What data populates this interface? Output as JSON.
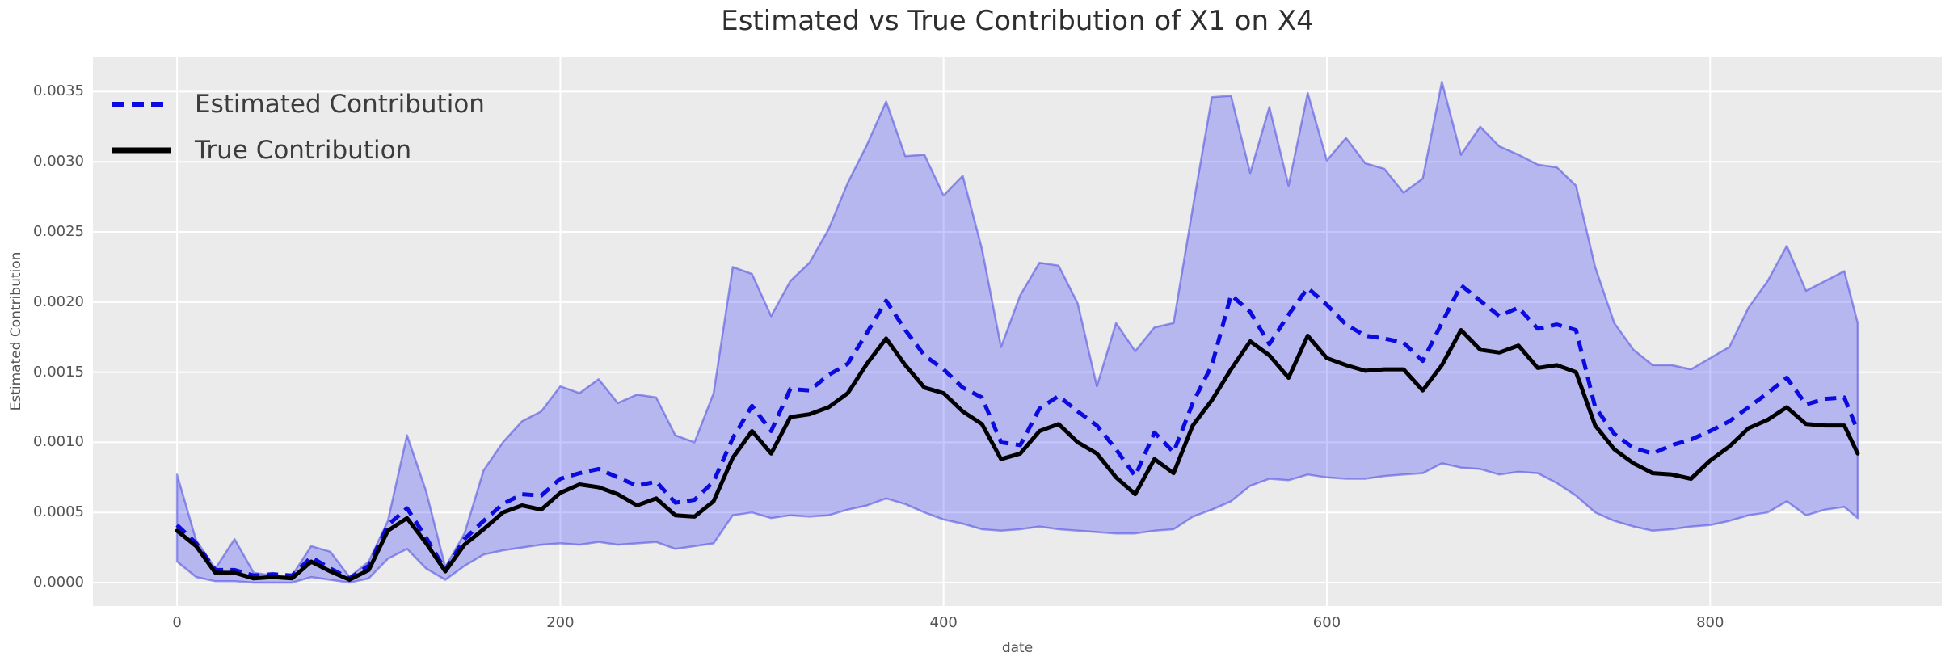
{
  "figure": {
    "title": "Estimated vs True Contribution of X1 on X4"
  },
  "axes": {
    "xlabel": "date",
    "ylabel": "Estimated Contribution",
    "background": "#ebebeb",
    "grid_color": "#ffffff",
    "x_ticks": [
      {
        "label": "0",
        "value": 0
      },
      {
        "label": "200",
        "value": 200
      },
      {
        "label": "400",
        "value": 400
      },
      {
        "label": "600",
        "value": 600
      },
      {
        "label": "800",
        "value": 800
      }
    ],
    "y_ticks": [
      {
        "label": "0.0000",
        "value": 0.0
      },
      {
        "label": "0.0005",
        "value": 0.0005
      },
      {
        "label": "0.0010",
        "value": 0.001
      },
      {
        "label": "0.0015",
        "value": 0.0015
      },
      {
        "label": "0.0020",
        "value": 0.002
      },
      {
        "label": "0.0025",
        "value": 0.0025
      },
      {
        "label": "0.0030",
        "value": 0.003
      },
      {
        "label": "0.0035",
        "value": 0.0035
      }
    ]
  },
  "legend": {
    "items": [
      {
        "label": "Estimated Contribution",
        "style": "dashed",
        "color": "#0b0be0"
      },
      {
        "label": "True Contribution",
        "style": "solid",
        "color": "#000000"
      }
    ]
  },
  "colors": {
    "estimated_line": "#0b0be0",
    "true_line": "#000000",
    "band_fill": "rgba(0,0,255,0.22)",
    "band_edge": "rgba(60,60,225,0.5)",
    "title_text": "#2e2e2e",
    "tick_text": "#545454"
  },
  "chart_data": {
    "type": "line",
    "title": "Estimated vs True Contribution of X1 on X4",
    "xlabel": "date",
    "ylabel": "Estimated Contribution",
    "xlim": [
      -43.9,
      920.9
    ],
    "ylim": [
      -0.000167,
      0.00375
    ],
    "grid": true,
    "legend_position": "upper left",
    "x": [
      0,
      10,
      20,
      30,
      40,
      50,
      60,
      70,
      80,
      90,
      100,
      110,
      120,
      130,
      140,
      150,
      160,
      170,
      180,
      190,
      200,
      210,
      220,
      230,
      240,
      250,
      260,
      270,
      280,
      290,
      300,
      310,
      320,
      330,
      340,
      350,
      360,
      370,
      380,
      390,
      400,
      410,
      420,
      430,
      440,
      450,
      460,
      470,
      480,
      490,
      500,
      510,
      520,
      530,
      540,
      550,
      560,
      570,
      580,
      590,
      600,
      610,
      620,
      630,
      640,
      650,
      660,
      670,
      680,
      690,
      700,
      710,
      720,
      730,
      740,
      750,
      760,
      770,
      780,
      790,
      800,
      810,
      820,
      830,
      840,
      850,
      860,
      870,
      877
    ],
    "series": [
      {
        "name": "Estimated Contribution",
        "style": "dashed",
        "values": [
          0.00041,
          0.00028,
          9e-05,
          9e-05,
          5e-05,
          6e-05,
          5e-05,
          0.00018,
          0.0001,
          3e-05,
          0.00012,
          0.00041,
          0.00053,
          0.00032,
          9e-05,
          0.00031,
          0.00044,
          0.00056,
          0.00063,
          0.00062,
          0.00074,
          0.00078,
          0.00081,
          0.00075,
          0.00069,
          0.00072,
          0.00057,
          0.00059,
          0.00072,
          0.00103,
          0.00126,
          0.00108,
          0.00138,
          0.00137,
          0.00148,
          0.00156,
          0.00178,
          0.00201,
          0.0018,
          0.00162,
          0.00152,
          0.00139,
          0.00132,
          0.001,
          0.00098,
          0.00124,
          0.00133,
          0.00122,
          0.00112,
          0.00095,
          0.00076,
          0.00107,
          0.00093,
          0.00128,
          0.00155,
          0.00205,
          0.00193,
          0.0017,
          0.00191,
          0.0021,
          0.00198,
          0.00184,
          0.00176,
          0.00174,
          0.00171,
          0.00158,
          0.00185,
          0.00212,
          0.00201,
          0.0019,
          0.00196,
          0.00181,
          0.00184,
          0.0018,
          0.00125,
          0.00106,
          0.00096,
          0.00092,
          0.00098,
          0.00102,
          0.00108,
          0.00115,
          0.00125,
          0.00135,
          0.00146,
          0.00127,
          0.00131,
          0.00132,
          0.00108
        ]
      },
      {
        "name": "True Contribution",
        "style": "solid",
        "values": [
          0.00037,
          0.00026,
          7e-05,
          7e-05,
          3e-05,
          4e-05,
          3e-05,
          0.00015,
          8e-05,
          2e-05,
          9e-05,
          0.00037,
          0.00046,
          0.00028,
          8e-05,
          0.00027,
          0.00038,
          0.0005,
          0.00055,
          0.00052,
          0.00064,
          0.0007,
          0.00068,
          0.00063,
          0.00055,
          0.0006,
          0.00048,
          0.00047,
          0.00058,
          0.00089,
          0.00108,
          0.00092,
          0.00118,
          0.0012,
          0.00125,
          0.00135,
          0.00156,
          0.00174,
          0.00155,
          0.00139,
          0.00135,
          0.00122,
          0.00113,
          0.00088,
          0.00092,
          0.00108,
          0.00113,
          0.001,
          0.00092,
          0.00075,
          0.00063,
          0.00088,
          0.00078,
          0.00112,
          0.0013,
          0.00152,
          0.00172,
          0.00162,
          0.00146,
          0.00176,
          0.0016,
          0.00155,
          0.00151,
          0.00152,
          0.00152,
          0.00137,
          0.00155,
          0.0018,
          0.00166,
          0.00164,
          0.00169,
          0.00153,
          0.00155,
          0.0015,
          0.00112,
          0.00095,
          0.00085,
          0.00078,
          0.00077,
          0.00074,
          0.00087,
          0.00097,
          0.0011,
          0.00116,
          0.00125,
          0.00113,
          0.00112,
          0.00112,
          0.00092
        ]
      },
      {
        "name": "Confidence band upper",
        "style": "band-edge",
        "values": [
          0.00077,
          0.0003,
          0.0001,
          0.00031,
          7e-05,
          5e-05,
          5e-05,
          0.00026,
          0.00022,
          4e-05,
          0.00015,
          0.00044,
          0.00105,
          0.00065,
          0.00011,
          0.00035,
          0.0008,
          0.001,
          0.00115,
          0.00122,
          0.0014,
          0.00135,
          0.00145,
          0.00128,
          0.00134,
          0.00132,
          0.00105,
          0.001,
          0.00135,
          0.00225,
          0.0022,
          0.0019,
          0.00215,
          0.00228,
          0.00252,
          0.00285,
          0.00312,
          0.00343,
          0.00304,
          0.00305,
          0.00276,
          0.0029,
          0.00238,
          0.00168,
          0.00205,
          0.00228,
          0.00226,
          0.00199,
          0.0014,
          0.00185,
          0.00165,
          0.00182,
          0.00185,
          0.00267,
          0.00346,
          0.00347,
          0.00292,
          0.00339,
          0.00283,
          0.00349,
          0.00301,
          0.00317,
          0.00299,
          0.00295,
          0.00278,
          0.00288,
          0.00357,
          0.00305,
          0.00325,
          0.00311,
          0.00305,
          0.00298,
          0.00296,
          0.00283,
          0.00225,
          0.00185,
          0.00166,
          0.00155,
          0.00155,
          0.00152,
          0.0016,
          0.00168,
          0.00196,
          0.00215,
          0.0024,
          0.00208,
          0.00215,
          0.00222,
          0.00185
        ]
      },
      {
        "name": "Confidence band lower",
        "style": "band-edge",
        "values": [
          0.00015,
          4e-05,
          1e-05,
          1e-05,
          0.0,
          0.0,
          0.0,
          4e-05,
          2e-05,
          0.0,
          3e-05,
          0.00017,
          0.00024,
          0.0001,
          2e-05,
          0.00012,
          0.0002,
          0.00023,
          0.00025,
          0.00027,
          0.00028,
          0.00027,
          0.00029,
          0.00027,
          0.00028,
          0.00029,
          0.00024,
          0.00026,
          0.00028,
          0.00048,
          0.0005,
          0.00046,
          0.00048,
          0.00047,
          0.00048,
          0.00052,
          0.00055,
          0.0006,
          0.00056,
          0.0005,
          0.00045,
          0.00042,
          0.00038,
          0.00037,
          0.00038,
          0.0004,
          0.00038,
          0.00037,
          0.00036,
          0.00035,
          0.00035,
          0.00037,
          0.00038,
          0.00047,
          0.00052,
          0.00058,
          0.00069,
          0.00074,
          0.00073,
          0.00077,
          0.00075,
          0.00074,
          0.00074,
          0.00076,
          0.00077,
          0.00078,
          0.00085,
          0.00082,
          0.00081,
          0.00077,
          0.00079,
          0.00078,
          0.00071,
          0.00062,
          0.0005,
          0.00044,
          0.0004,
          0.00037,
          0.00038,
          0.0004,
          0.00041,
          0.00044,
          0.00048,
          0.0005,
          0.00058,
          0.00048,
          0.00052,
          0.00054,
          0.00046
        ]
      }
    ]
  }
}
